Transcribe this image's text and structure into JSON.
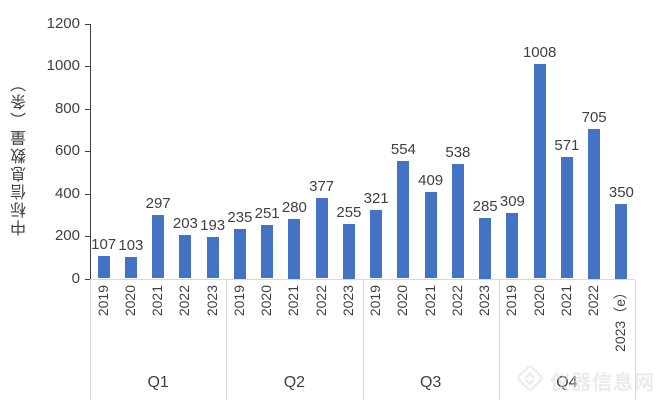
{
  "chart_data": {
    "type": "bar",
    "title": "",
    "xlabel": "",
    "ylabel": "中标信息数量（条）",
    "ylim": [
      0,
      1200
    ],
    "yticks": [
      0,
      200,
      400,
      600,
      800,
      1000,
      1200
    ],
    "grid": false,
    "legend": null,
    "bar_color": "#4472C4",
    "groups": [
      {
        "label": "Q1",
        "categories": [
          "2019",
          "2020",
          "2021",
          "2022",
          "2023"
        ],
        "values": [
          107,
          103,
          297,
          203,
          193
        ]
      },
      {
        "label": "Q2",
        "categories": [
          "2019",
          "2020",
          "2021",
          "2022",
          "2023"
        ],
        "values": [
          235,
          251,
          280,
          377,
          255
        ]
      },
      {
        "label": "Q3",
        "categories": [
          "2019",
          "2020",
          "2021",
          "2022",
          "2023"
        ],
        "values": [
          321,
          554,
          409,
          538,
          285
        ]
      },
      {
        "label": "Q4",
        "categories": [
          "2019",
          "2020",
          "2021",
          "2022",
          "2023（e）"
        ],
        "values": [
          309,
          1008,
          571,
          705,
          350
        ]
      }
    ]
  },
  "watermark": {
    "text": "仪器信息网"
  },
  "colors": {
    "bar": "#4472C4",
    "text": "#404040",
    "axis": "#404040",
    "separator": "#D9D9D9"
  }
}
